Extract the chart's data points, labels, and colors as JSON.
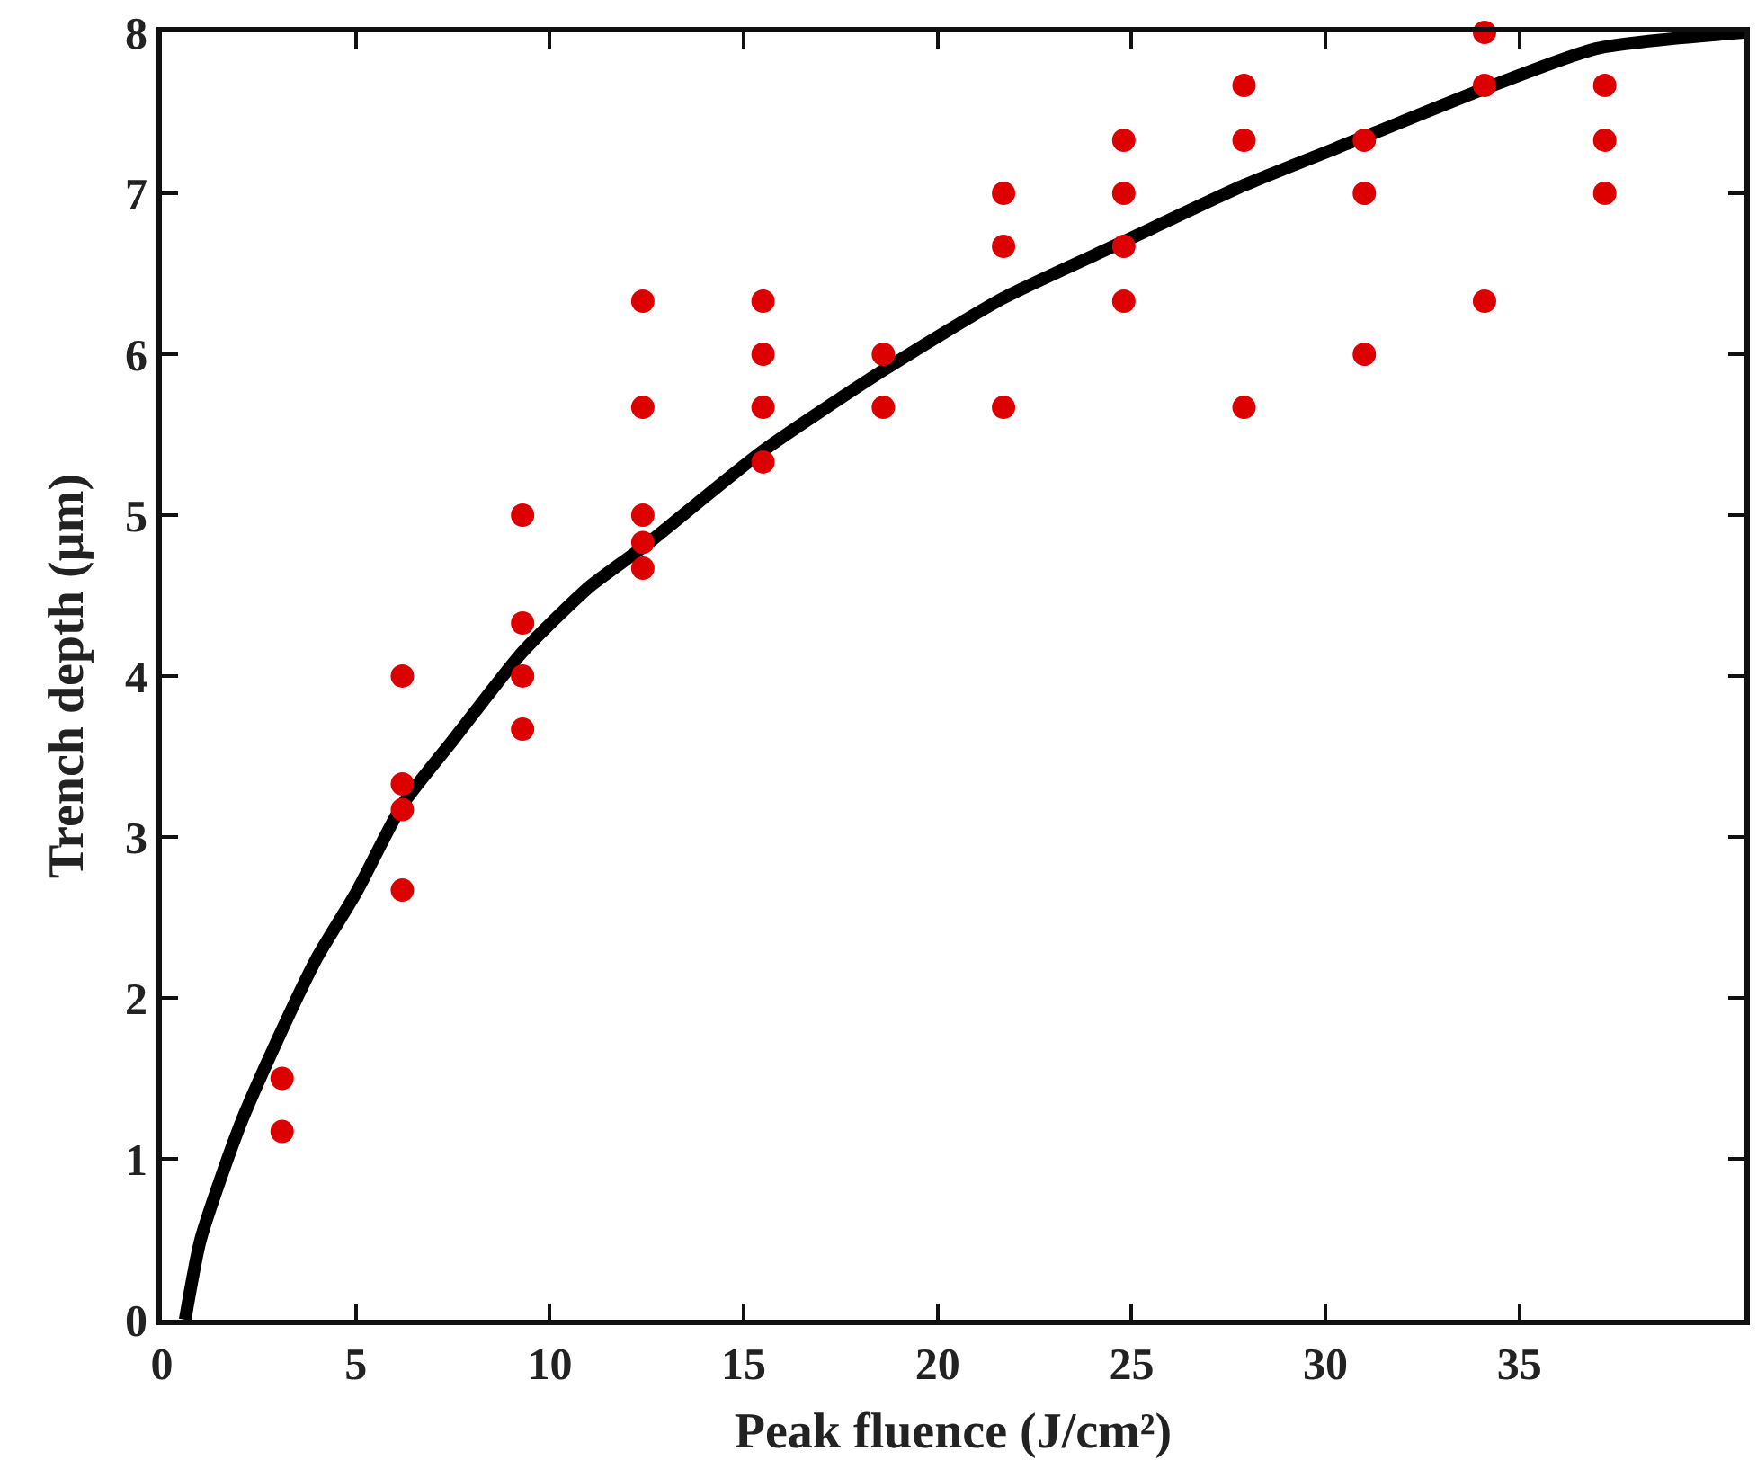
{
  "chart_data": {
    "type": "scatter",
    "xlabel": "Peak fluence (J/cm²)",
    "ylabel": "Trench depth (µm)",
    "xlim": [
      0,
      40.8
    ],
    "xticks": [
      0,
      5,
      10,
      15,
      20,
      25,
      30,
      35
    ],
    "ylim": [
      0,
      8
    ],
    "yticks": [
      0,
      1,
      2,
      3,
      4,
      5,
      6,
      7,
      8
    ],
    "marker": "circle",
    "series": [
      {
        "color": "#dd0000",
        "x": [
          3.1,
          3.1,
          6.2,
          6.2,
          6.2,
          6.2,
          9.3,
          9.3,
          9.3,
          9.3,
          12.4,
          12.4,
          12.4,
          12.4,
          12.4,
          15.5,
          15.5,
          15.5,
          15.5,
          18.6,
          18.6,
          21.7,
          21.7,
          21.7,
          24.8,
          24.8,
          24.8,
          24.8,
          27.9,
          27.9,
          27.9,
          31,
          31,
          31,
          34.1,
          34.1,
          34.1,
          37.2,
          37.2,
          37.2
        ],
        "values": [
          1.5,
          1.17,
          4.0,
          3.33,
          3.17,
          2.67,
          5.0,
          4.33,
          4.0,
          3.67,
          6.33,
          5.67,
          5.0,
          4.83,
          4.67,
          6.33,
          6.0,
          5.67,
          5.33,
          6.0,
          5.67,
          7.0,
          6.67,
          5.67,
          7.33,
          7.0,
          6.67,
          6.33,
          7.67,
          7.33,
          5.67,
          7.33,
          7.0,
          6.0,
          8.0,
          7.67,
          6.33,
          7.67,
          7.33,
          7.0
        ]
      },
      {
        "type": "line",
        "color": "#000000",
        "marker": "none",
        "x": [
          0.6,
          1,
          2,
          3,
          4,
          5,
          6.2,
          7.5,
          9.3,
          11,
          12.4,
          15.5,
          18.6,
          21.7,
          24.8,
          27.9,
          31,
          34.1,
          37,
          40.8
        ],
        "values": [
          0,
          0.5,
          1.2,
          1.75,
          2.25,
          2.65,
          3.2,
          3.6,
          4.15,
          4.55,
          4.8,
          5.4,
          5.9,
          6.35,
          6.7,
          7.05,
          7.35,
          7.65,
          7.9,
          8.0
        ]
      }
    ]
  }
}
